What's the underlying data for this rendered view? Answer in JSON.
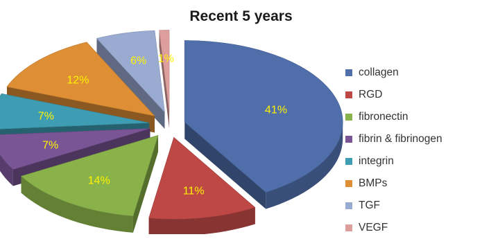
{
  "chart_data": {
    "type": "pie",
    "title": "Recent 5 years",
    "categories": [
      "collagen",
      "RGD",
      "fibronectin",
      "fibrin & fibrinogen",
      "integrin",
      "BMPs",
      "TGF",
      "VEGF"
    ],
    "values": [
      41,
      11,
      14,
      7,
      7,
      12,
      6,
      1
    ],
    "data_labels": [
      "41%",
      "11%",
      "14%",
      "7%",
      "7%",
      "12%",
      "6%",
      "1%"
    ],
    "colors": [
      "#4F6EAA",
      "#BD4845",
      "#89B24A",
      "#7A5596",
      "#3E9DB3",
      "#DE8E34",
      "#9AABD2",
      "#DD9E9D"
    ],
    "label_color": "#FFF200",
    "style": "3d-exploded",
    "legend_position": "right"
  }
}
